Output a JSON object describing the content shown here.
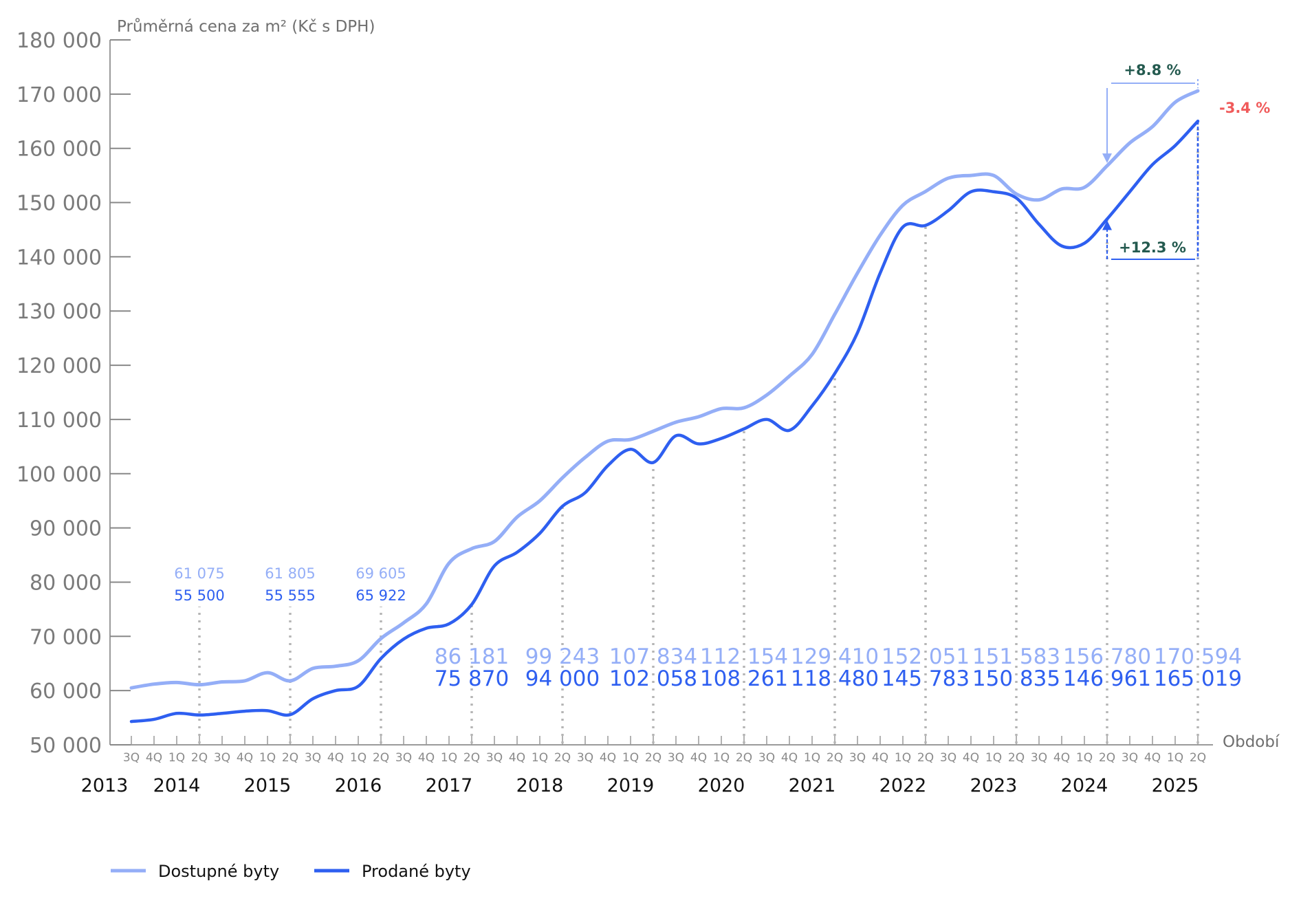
{
  "chart_data": {
    "type": "line",
    "ylabel": "Průměrná cena za m² (Kč s DPH)",
    "xlabel": "Období",
    "ylim": [
      50000,
      180000
    ],
    "yticks": [
      "50 000",
      "60 000",
      "70 000",
      "80 000",
      "90 000",
      "100 000",
      "110 000",
      "120 000",
      "130 000",
      "140 000",
      "150 000",
      "160 000",
      "170 000",
      "180 000"
    ],
    "ytick_values": [
      50000,
      60000,
      70000,
      80000,
      90000,
      100000,
      110000,
      120000,
      130000,
      140000,
      150000,
      160000,
      170000,
      180000
    ],
    "quarters": [
      "3Q",
      "4Q",
      "1Q",
      "2Q",
      "3Q",
      "4Q",
      "1Q",
      "2Q",
      "3Q",
      "4Q",
      "1Q",
      "2Q",
      "3Q",
      "4Q",
      "1Q",
      "2Q",
      "3Q",
      "4Q",
      "1Q",
      "2Q",
      "3Q",
      "4Q",
      "1Q",
      "2Q",
      "3Q",
      "4Q",
      "1Q",
      "2Q",
      "3Q",
      "4Q",
      "1Q",
      "2Q",
      "3Q",
      "4Q",
      "1Q",
      "2Q",
      "3Q",
      "4Q",
      "1Q",
      "2Q",
      "3Q",
      "4Q",
      "1Q",
      "2Q",
      "3Q",
      "4Q",
      "1Q",
      "2Q"
    ],
    "years": [
      "2013",
      "2014",
      "2015",
      "2016",
      "2017",
      "2018",
      "2019",
      "2020",
      "2021",
      "2022",
      "2023",
      "2024",
      "2025"
    ],
    "series": [
      {
        "name": "Dostupné byty",
        "color": "#94aef7",
        "values": [
          60500,
          61200,
          61500,
          61075,
          61600,
          61800,
          63300,
          61805,
          64100,
          64500,
          65500,
          69605,
          72500,
          76000,
          83500,
          86181,
          87500,
          92000,
          95000,
          99243,
          103000,
          106000,
          106300,
          107834,
          109500,
          110500,
          112000,
          112154,
          114500,
          118000,
          122000,
          129410,
          137000,
          144000,
          149500,
          152051,
          154500,
          155000,
          155000,
          151583,
          150500,
          152500,
          152800,
          156780,
          161000,
          164000,
          168500,
          170594
        ]
      },
      {
        "name": "Prodané byty",
        "color": "#2e5ff0",
        "values": [
          54300,
          54700,
          55800,
          55500,
          55800,
          56200,
          56300,
          55555,
          58500,
          60000,
          60800,
          65922,
          69500,
          71500,
          72300,
          75870,
          83000,
          85500,
          89000,
          94000,
          96500,
          101500,
          104500,
          102058,
          107000,
          105500,
          106500,
          108261,
          110000,
          108000,
          112500,
          118480,
          126000,
          137000,
          145500,
          145783,
          148500,
          152000,
          152000,
          150835,
          146000,
          142000,
          142500,
          146961,
          152000,
          157000,
          160500,
          165019
        ]
      }
    ],
    "data_labels": [
      {
        "index": 3,
        "size": "small",
        "available": "61 075",
        "sold": "55 500"
      },
      {
        "index": 7,
        "size": "small",
        "available": "61 805",
        "sold": "55 555"
      },
      {
        "index": 11,
        "size": "small",
        "available": "69 605",
        "sold": "65 922"
      },
      {
        "index": 15,
        "size": "large",
        "available": "86 181",
        "sold": "75 870"
      },
      {
        "index": 19,
        "size": "large",
        "available": "99 243",
        "sold": "94 000"
      },
      {
        "index": 23,
        "size": "large",
        "available": "107 834",
        "sold": "102 058"
      },
      {
        "index": 27,
        "size": "large",
        "available": "112 154",
        "sold": "108 261"
      },
      {
        "index": 31,
        "size": "large",
        "available": "129 410",
        "sold": "118 480"
      },
      {
        "index": 35,
        "size": "large",
        "available": "152 051",
        "sold": "145 783"
      },
      {
        "index": 39,
        "size": "large",
        "available": "151 583",
        "sold": "150 835"
      },
      {
        "index": 43,
        "size": "large",
        "available": "156 780",
        "sold": "146 961"
      },
      {
        "index": 47,
        "size": "large",
        "available": "170 594",
        "sold": "165 019"
      }
    ],
    "annotations": {
      "available_yoy": "+8.8 %",
      "sold_yoy": "+12.3 %",
      "gap": "-3.4 %",
      "positive_color": "#245a4f",
      "negative_color": "#f05a5a"
    },
    "legend": {
      "position": "bottom-left",
      "items": [
        "Dostupné byty",
        "Prodané byty"
      ]
    },
    "grid": false
  }
}
